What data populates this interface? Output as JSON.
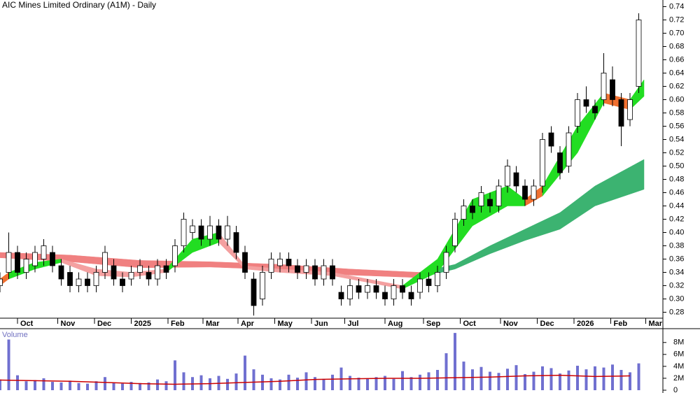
{
  "chart_data": {
    "type": "candlestick",
    "title": "AIC Mines Limited Ordinary (A1M) - Daily",
    "x": [
      0,
      5,
      10,
      15,
      20,
      25,
      30,
      35,
      40,
      45,
      50,
      55,
      60,
      65,
      70,
      75,
      80,
      85,
      90,
      95,
      100,
      105,
      110,
      115,
      120,
      125,
      130,
      135,
      140,
      145,
      150,
      155,
      160,
      165,
      170,
      175,
      180,
      185,
      190,
      195,
      200,
      205,
      210,
      215,
      220,
      225,
      230,
      235,
      240,
      245,
      250,
      255,
      260,
      265,
      270,
      275,
      280,
      285,
      290,
      295,
      300,
      305,
      310,
      315,
      320,
      325,
      330,
      335,
      340,
      345,
      350,
      355,
      360,
      365
    ],
    "open": [
      0.32,
      0.34,
      0.37,
      0.34,
      0.35,
      0.36,
      0.37,
      0.35,
      0.34,
      0.32,
      0.33,
      0.32,
      0.34,
      0.35,
      0.33,
      0.33,
      0.34,
      0.34,
      0.33,
      0.35,
      0.35,
      0.38,
      0.4,
      0.41,
      0.39,
      0.41,
      0.39,
      0.4,
      0.37,
      0.33,
      0.3,
      0.34,
      0.35,
      0.36,
      0.35,
      0.34,
      0.35,
      0.33,
      0.35,
      0.31,
      0.3,
      0.32,
      0.31,
      0.32,
      0.31,
      0.3,
      0.32,
      0.31,
      0.31,
      0.33,
      0.32,
      0.34,
      0.38,
      0.42,
      0.44,
      0.44,
      0.45,
      0.44,
      0.47,
      0.49,
      0.47,
      0.45,
      0.47,
      0.55,
      0.52,
      0.5,
      0.56,
      0.6,
      0.59,
      0.6,
      0.63,
      0.6,
      0.57,
      0.62
    ],
    "high": [
      0.34,
      0.4,
      0.38,
      0.37,
      0.38,
      0.39,
      0.38,
      0.36,
      0.35,
      0.34,
      0.34,
      0.35,
      0.38,
      0.36,
      0.34,
      0.35,
      0.36,
      0.35,
      0.36,
      0.36,
      0.39,
      0.43,
      0.42,
      0.42,
      0.425,
      0.42,
      0.425,
      0.41,
      0.38,
      0.34,
      0.35,
      0.37,
      0.37,
      0.37,
      0.36,
      0.36,
      0.36,
      0.36,
      0.36,
      0.32,
      0.33,
      0.33,
      0.33,
      0.33,
      0.32,
      0.33,
      0.33,
      0.32,
      0.34,
      0.34,
      0.35,
      0.38,
      0.43,
      0.45,
      0.45,
      0.47,
      0.46,
      0.48,
      0.51,
      0.5,
      0.48,
      0.48,
      0.55,
      0.56,
      0.53,
      0.56,
      0.61,
      0.62,
      0.6,
      0.67,
      0.65,
      0.61,
      0.61,
      0.73
    ],
    "low": [
      0.31,
      0.33,
      0.33,
      0.33,
      0.34,
      0.35,
      0.34,
      0.32,
      0.31,
      0.31,
      0.31,
      0.31,
      0.33,
      0.32,
      0.31,
      0.32,
      0.33,
      0.32,
      0.32,
      0.33,
      0.34,
      0.37,
      0.39,
      0.38,
      0.38,
      0.38,
      0.38,
      0.36,
      0.33,
      0.275,
      0.29,
      0.33,
      0.34,
      0.34,
      0.33,
      0.33,
      0.32,
      0.32,
      0.32,
      0.29,
      0.29,
      0.3,
      0.3,
      0.3,
      0.29,
      0.29,
      0.3,
      0.29,
      0.3,
      0.31,
      0.31,
      0.33,
      0.37,
      0.41,
      0.42,
      0.43,
      0.43,
      0.43,
      0.46,
      0.46,
      0.44,
      0.44,
      0.46,
      0.52,
      0.48,
      0.49,
      0.55,
      0.58,
      0.57,
      0.59,
      0.59,
      0.53,
      0.56,
      0.61
    ],
    "close": [
      0.33,
      0.37,
      0.34,
      0.36,
      0.37,
      0.38,
      0.35,
      0.33,
      0.32,
      0.33,
      0.32,
      0.34,
      0.37,
      0.33,
      0.32,
      0.34,
      0.35,
      0.33,
      0.35,
      0.34,
      0.38,
      0.42,
      0.41,
      0.39,
      0.41,
      0.39,
      0.41,
      0.37,
      0.34,
      0.29,
      0.34,
      0.36,
      0.36,
      0.35,
      0.34,
      0.35,
      0.33,
      0.35,
      0.33,
      0.3,
      0.32,
      0.31,
      0.32,
      0.31,
      0.3,
      0.32,
      0.31,
      0.3,
      0.33,
      0.32,
      0.34,
      0.37,
      0.42,
      0.44,
      0.43,
      0.46,
      0.44,
      0.47,
      0.5,
      0.47,
      0.45,
      0.47,
      0.54,
      0.53,
      0.49,
      0.55,
      0.6,
      0.59,
      0.58,
      0.64,
      0.6,
      0.56,
      0.6,
      0.72
    ],
    "up_color": "#ffffff",
    "down_color": "#000000",
    "xlim": [
      0,
      370
    ],
    "xticks": [
      {
        "value": 10,
        "label": "Oct"
      },
      {
        "value": 33,
        "label": "Nov"
      },
      {
        "value": 54,
        "label": "Dec"
      },
      {
        "value": 75,
        "label": "2025"
      },
      {
        "value": 96,
        "label": "Feb"
      },
      {
        "value": 116,
        "label": "Mar"
      },
      {
        "value": 136,
        "label": "Apr"
      },
      {
        "value": 157,
        "label": "May"
      },
      {
        "value": 178,
        "label": "Jun"
      },
      {
        "value": 197,
        "label": "Jul"
      },
      {
        "value": 220,
        "label": "Aug"
      },
      {
        "value": 242,
        "label": "Sep"
      },
      {
        "value": 263,
        "label": "Oct"
      },
      {
        "value": 286,
        "label": "Nov"
      },
      {
        "value": 307,
        "label": "Dec"
      },
      {
        "value": 328,
        "label": "2026"
      },
      {
        "value": 349,
        "label": "Feb"
      },
      {
        "value": 369,
        "label": "Mar"
      }
    ],
    "ylim": [
      0.27,
      0.75
    ],
    "yticks": [
      0.28,
      {
        "value": 0.3,
        "label": "0.30"
      },
      0.32,
      0.34,
      0.36,
      0.38,
      {
        "value": 0.4,
        "label": "0.40"
      },
      0.42,
      0.44,
      0.46,
      0.48,
      {
        "value": 0.5,
        "label": "0.50"
      },
      0.52,
      0.54,
      0.56,
      0.58,
      {
        "value": 0.6,
        "label": "0.60"
      },
      0.62,
      0.64,
      0.66,
      0.68,
      {
        "value": 0.7,
        "label": "0.70"
      },
      0.72,
      0.74
    ],
    "ribbons": [
      {
        "color": "#f08080",
        "x": [
          0,
          40,
          80,
          120,
          160,
          200,
          240
        ],
        "upper": [
          0.37,
          0.366,
          0.358,
          0.356,
          0.352,
          0.345,
          0.34
        ],
        "lower": [
          0.362,
          0.356,
          0.347,
          0.348,
          0.344,
          0.336,
          0.332
        ]
      },
      {
        "color": "#3cb371",
        "x": [
          240,
          260,
          280,
          300,
          320,
          340,
          368
        ],
        "upper": [
          0.34,
          0.352,
          0.38,
          0.405,
          0.43,
          0.47,
          0.51
        ],
        "lower": [
          0.332,
          0.345,
          0.368,
          0.388,
          0.405,
          0.44,
          0.465
        ]
      },
      {
        "color": "#f07030",
        "x": [
          0,
          5
        ],
        "upper": [
          0.33,
          0.34
        ],
        "lower": [
          0.32,
          0.33
        ]
      },
      {
        "color": "#22dd22",
        "x": [
          5,
          20,
          35
        ],
        "upper": [
          0.34,
          0.355,
          0.36
        ],
        "lower": [
          0.33,
          0.345,
          0.355
        ]
      },
      {
        "color": "#f4a0a0",
        "x": [
          35,
          55,
          75,
          95
        ],
        "upper": [
          0.36,
          0.345,
          0.34,
          0.345
        ],
        "lower": [
          0.355,
          0.335,
          0.333,
          0.34
        ]
      },
      {
        "color": "#22dd22",
        "x": [
          95,
          110,
          125
        ],
        "upper": [
          0.345,
          0.39,
          0.4
        ],
        "lower": [
          0.34,
          0.37,
          0.385
        ]
      },
      {
        "color": "#f4a0a0",
        "x": [
          125,
          140,
          160
        ],
        "upper": [
          0.4,
          0.35,
          0.345
        ],
        "lower": [
          0.385,
          0.345,
          0.34
        ]
      },
      {
        "color": "#f4a0a0",
        "x": [
          160,
          190,
          230
        ],
        "upper": [
          0.345,
          0.34,
          0.32
        ],
        "lower": [
          0.34,
          0.335,
          0.315
        ]
      },
      {
        "color": "#22dd22",
        "x": [
          230,
          250,
          270,
          290,
          300
        ],
        "upper": [
          0.32,
          0.36,
          0.45,
          0.47,
          0.45
        ],
        "lower": [
          0.315,
          0.34,
          0.41,
          0.44,
          0.44
        ]
      },
      {
        "color": "#f07030",
        "x": [
          300,
          310
        ],
        "upper": [
          0.45,
          0.47
        ],
        "lower": [
          0.44,
          0.455
        ]
      },
      {
        "color": "#22dd22",
        "x": [
          310,
          330,
          345
        ],
        "upper": [
          0.47,
          0.56,
          0.61
        ],
        "lower": [
          0.455,
          0.52,
          0.595
        ]
      },
      {
        "color": "#f07030",
        "x": [
          345,
          360
        ],
        "upper": [
          0.61,
          0.6
        ],
        "lower": [
          0.595,
          0.585
        ]
      },
      {
        "color": "#22dd22",
        "x": [
          360,
          368
        ],
        "upper": [
          0.6,
          0.63
        ],
        "lower": [
          0.585,
          0.605
        ]
      }
    ],
    "volume": {
      "label": "Volume",
      "color": "#7070d0",
      "values": [
        1800000,
        8500000,
        2500000,
        1500000,
        1700000,
        2000000,
        1400000,
        1300000,
        1600000,
        1200000,
        1100000,
        1500000,
        2200000,
        1300000,
        1100000,
        1400000,
        1200000,
        1300000,
        1800000,
        1500000,
        5000000,
        3000000,
        2200000,
        2500000,
        2000000,
        2400000,
        1900000,
        2800000,
        5800000,
        3500000,
        2600000,
        2000000,
        1800000,
        2600000,
        2100000,
        3000000,
        2200000,
        1900000,
        2600000,
        3800000,
        2400000,
        2100000,
        2000000,
        2200000,
        2400000,
        1900000,
        3200000,
        2200000,
        2600000,
        3000000,
        3400000,
        6200000,
        9600000,
        4800000,
        3500000,
        3900000,
        3100000,
        2900000,
        3600000,
        4200000,
        2700000,
        3100000,
        4000000,
        3700000,
        2800000,
        3300000,
        4100000,
        3500000,
        4000000,
        3800000,
        4300000,
        3400000,
        3000000,
        4500000
      ],
      "ylim": [
        0,
        10200000
      ],
      "yticks": [
        0,
        {
          "value": 2000000,
          "label": "2M"
        },
        {
          "value": 4000000,
          "label": "4M"
        },
        {
          "value": 6000000,
          "label": "6M"
        },
        {
          "value": 8000000,
          "label": "8M"
        }
      ],
      "ma": {
        "color": "#cc0000",
        "x": [
          0,
          20,
          40,
          60,
          80,
          100,
          120,
          140,
          160,
          180,
          200,
          220,
          240,
          260,
          280,
          300,
          320,
          340,
          360
        ],
        "values": [
          1700000,
          1600000,
          1500000,
          1300000,
          1100000,
          1000000,
          1100000,
          1300000,
          1500000,
          1800000,
          1900000,
          2000000,
          2000000,
          2100000,
          2200000,
          2400000,
          2500000,
          2300000,
          2400000
        ]
      }
    }
  }
}
